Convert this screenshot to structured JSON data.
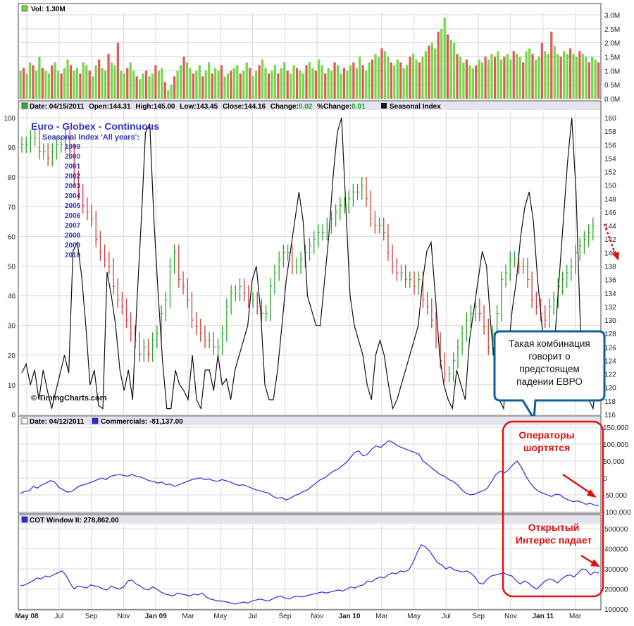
{
  "colors": {
    "up": "#78d64a",
    "down": "#e15a5a",
    "seasonal": "#000000",
    "blue": "#2a2ae0",
    "red_accent": "#e01010",
    "panel_border": "#444444",
    "header_bg": "#e4e4ee",
    "callout_fill": "#0f5f9c"
  },
  "icons": {
    "up_marker": "green-square-icon",
    "down_marker": "blue-square-icon",
    "white_marker": "white-square-icon"
  },
  "panels": {
    "volume": {
      "label": "Vol: 1.30M"
    },
    "price_header": {
      "date": "Date: 04/15/2011",
      "open": "Open:144.31",
      "high": "High:145.00",
      "low": "Low:143.45",
      "close": "Close:144.16",
      "change_label": "Change:",
      "change_value": "0.02",
      "pct_label": "%Change:",
      "pct_value": "0.01",
      "seasonal": "Seasonal Index"
    },
    "price_title": "Euro - Globex - Continuous",
    "seasonal_subtitle": "Seasonal Index 'All years':",
    "years": [
      "1999",
      "2000",
      "2001",
      "2002",
      "2003",
      "2004",
      "2005",
      "2006",
      "2007",
      "2008",
      "2009",
      "2010"
    ],
    "copyright": "© TimingCharts.com",
    "commercials_header": {
      "date": "Date: 04/12/2011",
      "label": "Commercials: -81,137.00"
    },
    "cot_header": {
      "label": "COT Window II: 278,862.00"
    }
  },
  "annotations": {
    "callout_text": "Такая комбинация говорит о предстоящем падении ЕВРО",
    "operators": "Операторы шортятся",
    "open_interest": "Открытый Интерес падает"
  },
  "chart_data": [
    {
      "type": "bar",
      "name": "volume",
      "ylim": [
        0,
        3.0
      ],
      "tick_labels": [
        "3.0M",
        "2.5M",
        "2.0M",
        "1.5M",
        "1.0M",
        "0.5M",
        "0.0M"
      ],
      "tick_values": [
        3.0,
        2.5,
        2.0,
        1.5,
        1.0,
        0.5,
        0.0
      ],
      "values": [
        1.0,
        1.1,
        0.9,
        1.3,
        1.2,
        1.0,
        1.5,
        1.1,
        1.0,
        0.9,
        1.2,
        1.3,
        1.0,
        0.9,
        1.1,
        1.4,
        1.2,
        1.0,
        1.1,
        0.9,
        1.3,
        1.2,
        1.0,
        0.8,
        1.2,
        1.4,
        1.1,
        1.0,
        1.6,
        1.3,
        1.2,
        2.0,
        1.0,
        0.9,
        1.1,
        1.3,
        1.0,
        0.8,
        0.7,
        0.9,
        1.0,
        0.8,
        0.9,
        1.2,
        1.0,
        1.1,
        0.6,
        0.3,
        0.5,
        0.8,
        1.0,
        1.2,
        1.5,
        1.3,
        1.1,
        0.9,
        1.0,
        1.2,
        0.8,
        1.0,
        1.3,
        0.9,
        1.1,
        1.0,
        1.2,
        0.8,
        0.9,
        1.0,
        1.1,
        1.2,
        0.9,
        1.0,
        1.3,
        1.1,
        0.8,
        1.0,
        1.2,
        1.4,
        1.1,
        0.9,
        1.0,
        1.2,
        0.9,
        1.1,
        1.3,
        1.0,
        0.9,
        1.2,
        1.1,
        1.0,
        0.9,
        1.2,
        1.3,
        1.1,
        1.0,
        1.4,
        1.2,
        0.9,
        1.1,
        1.0,
        1.3,
        1.2,
        0.9,
        1.1,
        1.0,
        1.2,
        1.3,
        1.1,
        1.5,
        1.2,
        1.0,
        1.3,
        1.4,
        1.6,
        1.5,
        1.8,
        1.7,
        1.5,
        1.3,
        1.2,
        1.4,
        1.3,
        1.1,
        1.2,
        1.5,
        1.6,
        1.4,
        1.3,
        1.5,
        1.7,
        1.9,
        2.0,
        1.8,
        2.4,
        2.5,
        2.9,
        2.3,
        2.1,
        2.0,
        1.6,
        1.5,
        1.3,
        1.4,
        1.2,
        1.1,
        1.2,
        1.4,
        1.3,
        1.5,
        1.4,
        1.6,
        1.5,
        1.7,
        1.4,
        1.5,
        1.6,
        1.4,
        1.7,
        1.6,
        1.5,
        1.3,
        1.7,
        1.8,
        1.6,
        1.4,
        1.5,
        2.0,
        1.7,
        1.6,
        2.4,
        1.9,
        1.6,
        1.5,
        1.7,
        1.6,
        1.8,
        1.6,
        1.5,
        1.7,
        1.6,
        1.5,
        1.3,
        1.5,
        1.4,
        1.3
      ]
    },
    {
      "type": "line",
      "name": "price_and_seasonal",
      "x_tick_labels": [
        "May 08",
        "Jul",
        "Sep",
        "Nov",
        "Jan 09",
        "Mar",
        "May",
        "Jul",
        "Sep",
        "Nov",
        "Jan 10",
        "Mar",
        "May",
        "Jul",
        "Sep",
        "Nov",
        "Jan 11",
        "Mar"
      ],
      "left_ylim": [
        0,
        100
      ],
      "left_ticks": [
        100,
        90,
        80,
        70,
        60,
        50,
        40,
        30,
        20,
        10,
        0
      ],
      "right_ylim": [
        116,
        160
      ],
      "right_ticks": [
        160,
        158,
        156,
        154,
        152,
        150,
        148,
        146,
        144,
        142,
        140,
        138,
        136,
        134,
        132,
        130,
        128,
        126,
        124,
        122,
        120,
        118,
        116
      ],
      "price_close": [
        156,
        156,
        157,
        157,
        155,
        155,
        154,
        155,
        156,
        156,
        157,
        155,
        151,
        149,
        147,
        146,
        145,
        142,
        140,
        139,
        138,
        135,
        133,
        132,
        130,
        128,
        127,
        125,
        126,
        125,
        127,
        128,
        131,
        133,
        138,
        140,
        136,
        135,
        133,
        130,
        129,
        128,
        127,
        127,
        126,
        126,
        128,
        132,
        134,
        134,
        135,
        134,
        133,
        133,
        132,
        131,
        131,
        135,
        137,
        139,
        140,
        140,
        138,
        138,
        139,
        140,
        141,
        142,
        143,
        143,
        144,
        145,
        146,
        147,
        147,
        148,
        149,
        149,
        150,
        148,
        145,
        144,
        144,
        143,
        140,
        138,
        137,
        137,
        136,
        136,
        135,
        136,
        133,
        132,
        130,
        127,
        124,
        122,
        122,
        124,
        126,
        128,
        130,
        131,
        132,
        131,
        129,
        126,
        128,
        131,
        136,
        137,
        139,
        139,
        138,
        138,
        136,
        133,
        132,
        131,
        130,
        132,
        133,
        135,
        136,
        137,
        138,
        140,
        141,
        142,
        143,
        144
      ],
      "seasonal_index": [
        14,
        17,
        10,
        15,
        5,
        15,
        8,
        2,
        8,
        14,
        20,
        14,
        55,
        58,
        47,
        30,
        10,
        15,
        3,
        2,
        48,
        40,
        30,
        15,
        8,
        15,
        5,
        38,
        65,
        95,
        98,
        65,
        40,
        18,
        2,
        2,
        15,
        10,
        8,
        5,
        20,
        5,
        2,
        15,
        15,
        8,
        20,
        10,
        12,
        5,
        15,
        20,
        25,
        30,
        45,
        50,
        35,
        10,
        5,
        5,
        15,
        30,
        45,
        55,
        65,
        75,
        65,
        40,
        35,
        30,
        30,
        45,
        60,
        80,
        95,
        100,
        70,
        40,
        30,
        25,
        20,
        10,
        5,
        20,
        25,
        20,
        10,
        2,
        5,
        10,
        15,
        20,
        25,
        30,
        45,
        55,
        58,
        40,
        20,
        10,
        5,
        2,
        15,
        10,
        5,
        25,
        35,
        45,
        55,
        50,
        30,
        15,
        5,
        2,
        20,
        35,
        45,
        60,
        70,
        75,
        65,
        45,
        30,
        20,
        5,
        25,
        45,
        65,
        85,
        100,
        75,
        30,
        10,
        5,
        2,
        15
      ],
      "title": "Euro - Globex - Continuous"
    },
    {
      "type": "line",
      "name": "Commercials",
      "ylim": [
        -100000,
        150000
      ],
      "tick_labels": [
        "150,000",
        "100,000",
        "50,000",
        "0",
        "-50,000",
        "-100,000"
      ],
      "tick_values": [
        150000,
        100000,
        50000,
        0,
        -50000,
        -100000
      ],
      "values": [
        -45000,
        -40000,
        -38000,
        -25000,
        -30000,
        -20000,
        -15000,
        -8000,
        -12000,
        -28000,
        -35000,
        -42000,
        -40000,
        -30000,
        -22000,
        -20000,
        -15000,
        -10000,
        -5000,
        0,
        -5000,
        5000,
        8000,
        10000,
        8000,
        5000,
        10000,
        5000,
        3000,
        -2000,
        -8000,
        -10000,
        -15000,
        -12000,
        -20000,
        -18000,
        -25000,
        -20000,
        -15000,
        -10000,
        -5000,
        -2000,
        0,
        -5000,
        -3000,
        -8000,
        -10000,
        -5000,
        -8000,
        -12000,
        -18000,
        -22000,
        -20000,
        -25000,
        -30000,
        -35000,
        -38000,
        -42000,
        -45000,
        -55000,
        -60000,
        -58000,
        -65000,
        -60000,
        -52000,
        -48000,
        -40000,
        -35000,
        -25000,
        -15000,
        -5000,
        0,
        10000,
        20000,
        25000,
        35000,
        45000,
        60000,
        75000,
        80000,
        65000,
        70000,
        85000,
        95000,
        90000,
        100000,
        110000,
        105000,
        95000,
        90000,
        85000,
        80000,
        75000,
        70000,
        50000,
        40000,
        30000,
        20000,
        10000,
        5000,
        -5000,
        -10000,
        -20000,
        -35000,
        -45000,
        -50000,
        -48000,
        -42000,
        -38000,
        -30000,
        -10000,
        10000,
        20000,
        15000,
        25000,
        40000,
        50000,
        30000,
        5000,
        -15000,
        -30000,
        -40000,
        -45000,
        -50000,
        -55000,
        -48000,
        -50000,
        -60000,
        -65000,
        -70000,
        -68000,
        -72000,
        -78000,
        -75000,
        -80000,
        -82000
      ],
      "label": "Commercials: -81,137.00"
    },
    {
      "type": "line",
      "name": "COT Window II",
      "ylim": [
        100000,
        500000
      ],
      "tick_labels": [
        "500000",
        "400000",
        "300000",
        "200000",
        "100000"
      ],
      "tick_values": [
        500000,
        400000,
        300000,
        200000,
        100000
      ],
      "values": [
        215000,
        220000,
        230000,
        240000,
        255000,
        250000,
        265000,
        260000,
        270000,
        280000,
        290000,
        270000,
        230000,
        200000,
        215000,
        210000,
        205000,
        220000,
        215000,
        210000,
        200000,
        195000,
        215000,
        205000,
        200000,
        210000,
        240000,
        245000,
        225000,
        215000,
        200000,
        195000,
        210000,
        200000,
        185000,
        175000,
        170000,
        165000,
        180000,
        175000,
        170000,
        165000,
        175000,
        170000,
        180000,
        160000,
        150000,
        145000,
        140000,
        140000,
        135000,
        130000,
        125000,
        130000,
        135000,
        130000,
        140000,
        145000,
        150000,
        145000,
        140000,
        150000,
        160000,
        165000,
        155000,
        150000,
        160000,
        165000,
        160000,
        165000,
        170000,
        175000,
        180000,
        185000,
        180000,
        185000,
        190000,
        195000,
        190000,
        200000,
        210000,
        205000,
        215000,
        220000,
        240000,
        235000,
        250000,
        260000,
        255000,
        270000,
        280000,
        275000,
        290000,
        285000,
        295000,
        330000,
        380000,
        420000,
        410000,
        390000,
        360000,
        330000,
        320000,
        300000,
        310000,
        295000,
        290000,
        285000,
        290000,
        280000,
        260000,
        230000,
        225000,
        250000,
        265000,
        270000,
        275000,
        280000,
        270000,
        265000,
        240000,
        225000,
        240000,
        230000,
        210000,
        200000,
        220000,
        240000,
        250000,
        245000,
        230000,
        250000,
        265000,
        270000,
        260000,
        280000,
        300000,
        295000,
        270000,
        285000,
        278862
      ],
      "label": "COT Window II: 278,862.00"
    }
  ]
}
